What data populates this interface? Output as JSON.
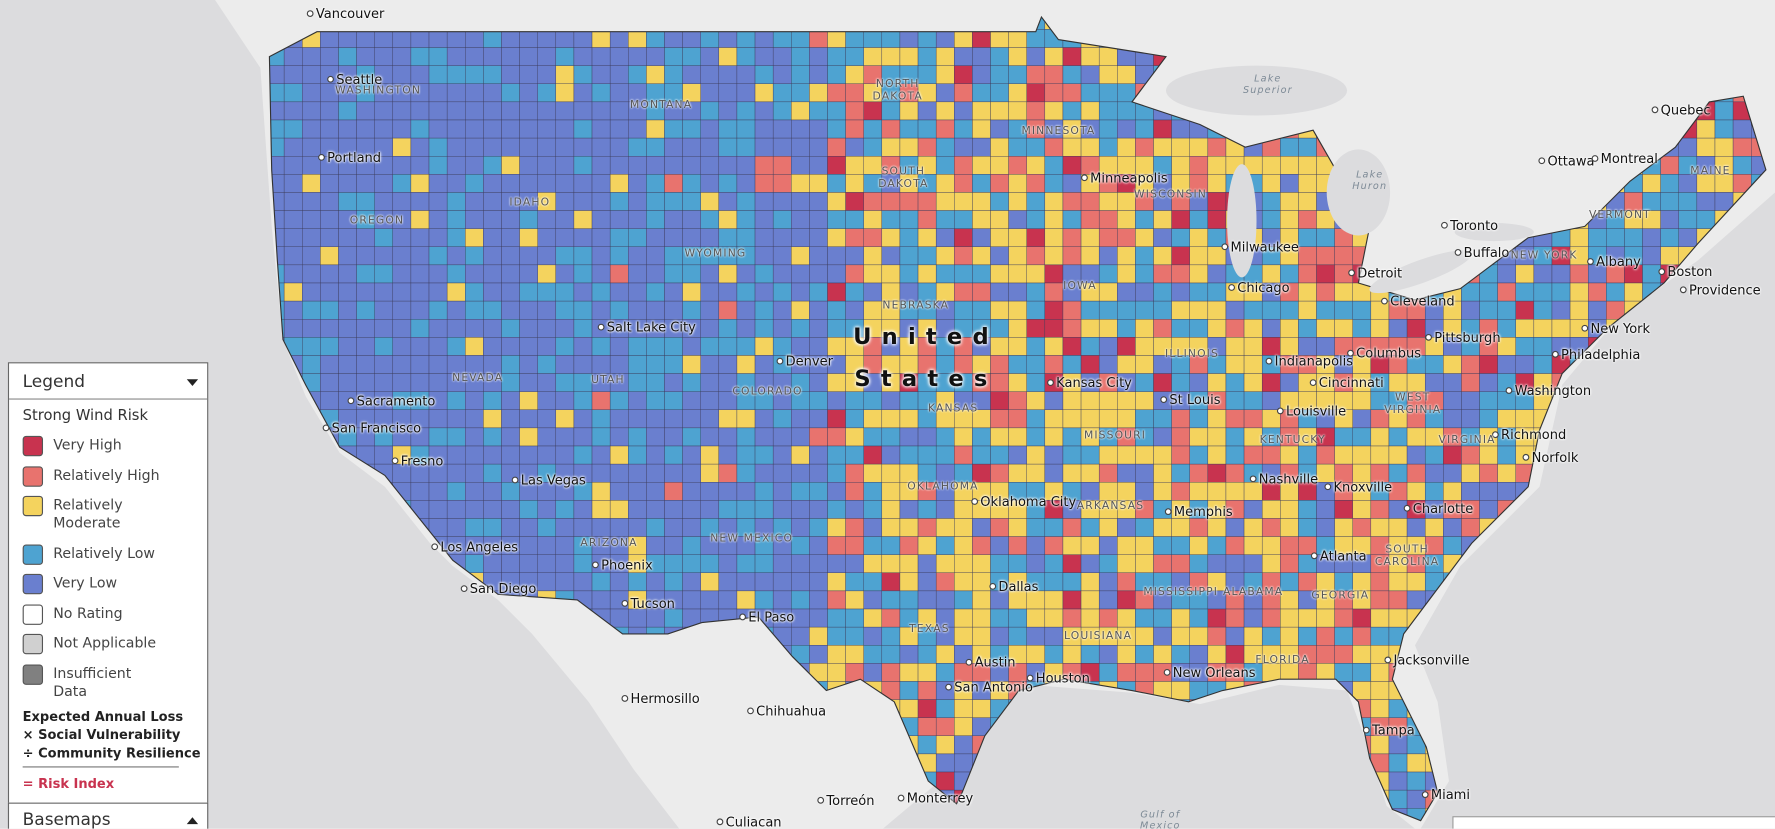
{
  "legend": {
    "title": "Legend",
    "heading": "Strong Wind Risk",
    "items": [
      {
        "label": "Very High",
        "color": "#c8334f"
      },
      {
        "label": "Relatively High",
        "color": "#e8736e"
      },
      {
        "label": "Relatively Moderate",
        "color": "#f4d35e"
      },
      {
        "label": "Relatively Low",
        "color": "#4ea3d1"
      },
      {
        "label": "Very Low",
        "color": "#6a7fcf"
      },
      {
        "label": "No Rating",
        "color": "#ffffff"
      },
      {
        "label": "Not Applicable",
        "color": "#d0d0d0"
      },
      {
        "label": "Insufficient Data",
        "color": "#808080"
      }
    ],
    "formula": [
      "Expected Annual Loss",
      "× Social Vulnerability",
      "÷ Community Resilience"
    ],
    "result": "= Risk Index"
  },
  "basemaps": "Basemaps",
  "map": {
    "country": "United States",
    "cities": [
      "Vancouver",
      "Seattle",
      "Portland",
      "Sacramento",
      "San Francisco",
      "Fresno",
      "Las Vegas",
      "Los Angeles",
      "San Diego",
      "Phoenix",
      "Tucson",
      "Salt Lake City",
      "Denver",
      "El Paso",
      "Minneapolis",
      "Milwaukee",
      "Chicago",
      "Detroit",
      "Cleveland",
      "Toronto",
      "Buffalo",
      "Albany",
      "Boston",
      "Providence",
      "New York",
      "Philadelphia",
      "Pittsburgh",
      "Columbus",
      "Indianapolis",
      "Cincinnati",
      "Washington",
      "Richmond",
      "Norfolk",
      "Kansas City",
      "St Louis",
      "Louisville",
      "Nashville",
      "Knoxville",
      "Charlotte",
      "Memphis",
      "Atlanta",
      "Oklahoma City",
      "Dallas",
      "Austin",
      "San Antonio",
      "Houston",
      "New Orleans",
      "Jacksonville",
      "Tampa",
      "Miami",
      "Hermosillo",
      "Chihuahua",
      "Torreón",
      "Monterrey",
      "Culiacan",
      "Quebec",
      "Ottawa",
      "Montreal"
    ],
    "states": [
      "WASHINGTON",
      "MONTANA",
      "NORTH DAKOTA",
      "MINNESOTA",
      "OREGON",
      "IDAHO",
      "SOUTH DAKOTA",
      "WISCONSIN",
      "VERMONT",
      "MAINE",
      "NEW YORK",
      "WYOMING",
      "NEBRASKA",
      "IOWA",
      "NEVADA",
      "UTAH",
      "COLORADO",
      "ILLINOIS",
      "KANSAS",
      "MISSOURI",
      "WEST VIRGINIA",
      "KENTUCKY",
      "VIRGINIA",
      "OKLAHOMA",
      "ARKANSAS",
      "ARIZONA",
      "NEW MEXICO",
      "SOUTH CAROLINA",
      "MISSISSIPPI",
      "ALABAMA",
      "GEORGIA",
      "TEXAS",
      "LOUISIANA",
      "FLORIDA"
    ],
    "waters": [
      "Lake Superior",
      "Lake Huron",
      "Gulf of Mexico"
    ]
  }
}
